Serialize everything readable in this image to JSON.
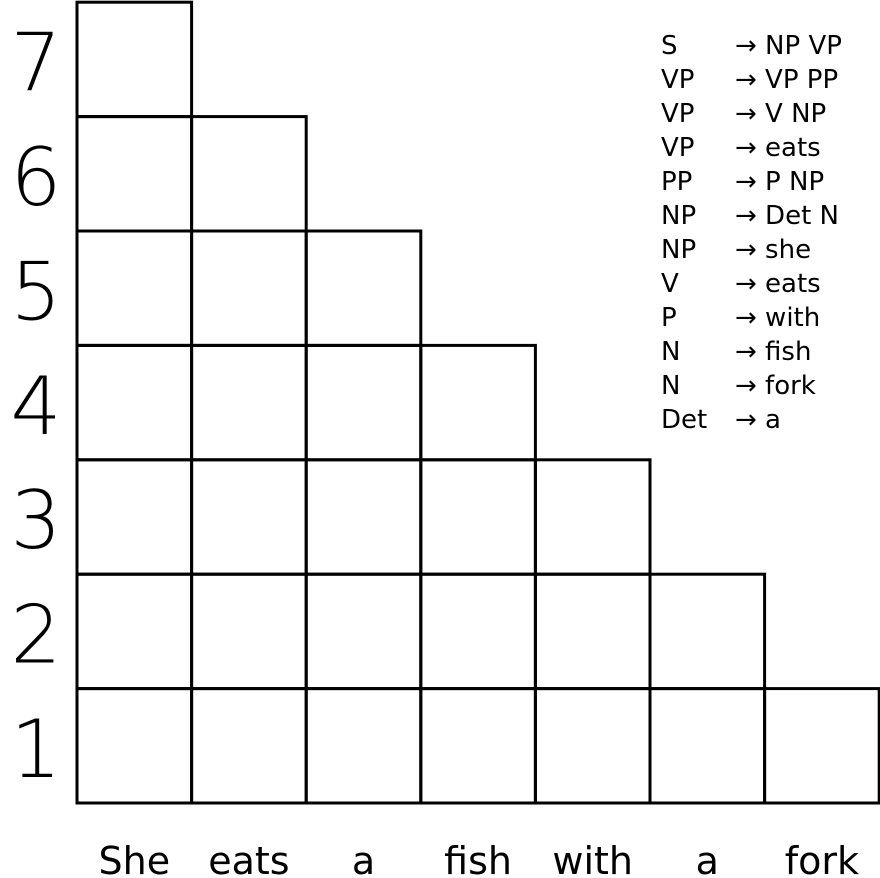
{
  "row_labels": [
    "1",
    "2",
    "3",
    "4",
    "5",
    "6",
    "7"
  ],
  "words": [
    "She",
    "eats",
    "a",
    "fish",
    "with",
    "a",
    "fork"
  ],
  "grammar": [
    {
      "lhs": "S",
      "rhs": "→ NP VP"
    },
    {
      "lhs": "VP",
      "rhs": "→ VP PP"
    },
    {
      "lhs": "VP",
      "rhs": "→ V NP"
    },
    {
      "lhs": "VP",
      "rhs": "→ eats"
    },
    {
      "lhs": "PP",
      "rhs": "→ P NP"
    },
    {
      "lhs": "NP",
      "rhs": "→ Det N"
    },
    {
      "lhs": "NP",
      "rhs": "→ she"
    },
    {
      "lhs": "V",
      "rhs": "→ eats"
    },
    {
      "lhs": "P",
      "rhs": "→ with"
    },
    {
      "lhs": "N",
      "rhs": "→ fish"
    },
    {
      "lhs": "N",
      "rhs": "→ fork"
    },
    {
      "lhs": "Det",
      "rhs": "→ a"
    }
  ]
}
